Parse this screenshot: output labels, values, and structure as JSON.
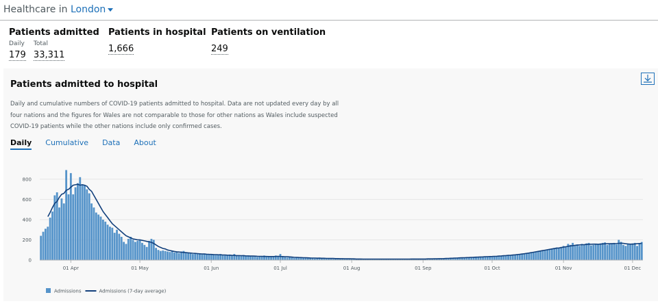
{
  "header": {
    "title": "Healthcare in",
    "location": "London"
  },
  "summary": [
    {
      "title": "Patients admitted",
      "items": [
        {
          "label": "Daily",
          "value": "179"
        },
        {
          "label": "Total",
          "value": "33,311"
        }
      ]
    },
    {
      "title": "Patients in hospital",
      "items": [
        {
          "value": "1,666"
        }
      ]
    },
    {
      "title": "Patients on ventilation",
      "items": [
        {
          "value": "249"
        }
      ]
    }
  ],
  "card": {
    "title": "Patients admitted to hospital",
    "description": "Daily and cumulative numbers of COVID-19 patients admitted to hospital. Data are not updated every day by all four nations and the figures for Wales are not comparable to those for other nations as Wales include suspected COVID-19 patients while the other nations include only confirmed cases.",
    "tabs": [
      "Daily",
      "Cumulative",
      "Data",
      "About"
    ]
  },
  "chart_data": {
    "type": "bar",
    "categories": [
      null,
      null,
      null,
      null,
      null,
      null,
      null,
      null,
      null,
      null,
      null,
      null,
      null,
      "01 Apr",
      null,
      null,
      null,
      null,
      null,
      null,
      null,
      null,
      null,
      null,
      null,
      null,
      null,
      null,
      null,
      null,
      null,
      null,
      null,
      null,
      null,
      null,
      null,
      null,
      null,
      null,
      null,
      null,
      null,
      "01 May",
      null,
      null,
      null,
      null,
      null,
      null,
      null,
      null,
      null,
      null,
      null,
      null,
      null,
      null,
      null,
      null,
      null,
      null,
      null,
      null,
      null,
      null,
      null,
      null,
      null,
      null,
      null,
      null,
      null,
      null,
      "01 Jun",
      null,
      null,
      null,
      null,
      null,
      null,
      null,
      null,
      null,
      null,
      null,
      null,
      null,
      null,
      null,
      null,
      null,
      null,
      null,
      null,
      null,
      null,
      null,
      null,
      null,
      null,
      null,
      null,
      null,
      "01 Jul",
      null,
      null,
      null,
      null,
      null,
      null,
      null,
      null,
      null,
      null,
      null,
      null,
      null,
      null,
      null,
      null,
      null,
      null,
      null,
      null,
      null,
      null,
      null,
      null,
      null,
      null,
      null,
      null,
      null,
      null,
      "01 Aug",
      null,
      null,
      null,
      null,
      null,
      null,
      null,
      null,
      null,
      null,
      null,
      null,
      null,
      null,
      null,
      null,
      null,
      null,
      null,
      null,
      null,
      null,
      null,
      null,
      null,
      null,
      null,
      null,
      null,
      null,
      "01 Sep",
      null,
      null,
      null,
      null,
      null,
      null,
      null,
      null,
      null,
      null,
      null,
      null,
      null,
      null,
      null,
      null,
      null,
      null,
      null,
      null,
      null,
      null,
      null,
      null,
      null,
      null,
      null,
      null,
      null,
      "01 Oct",
      null,
      null,
      null,
      null,
      null,
      null,
      null,
      null,
      null,
      null,
      null,
      null,
      null,
      null,
      null,
      null,
      null,
      null,
      null,
      null,
      null,
      null,
      null,
      null,
      null,
      null,
      null,
      null,
      null,
      null,
      "01 Nov",
      null,
      null,
      null,
      null,
      null,
      null,
      null,
      null,
      null,
      null,
      null,
      null,
      null,
      null,
      null,
      null,
      null,
      null,
      null,
      null,
      null,
      null,
      null,
      null,
      null,
      null,
      null,
      null,
      null,
      "01 Dec",
      null,
      null,
      null,
      null
    ],
    "series": [
      {
        "name": "Admissions",
        "type": "bar",
        "color": "#5694ca",
        "values": [
          240,
          280,
          310,
          330,
          420,
          480,
          640,
          670,
          520,
          610,
          560,
          890,
          650,
          860,
          650,
          720,
          760,
          820,
          750,
          740,
          700,
          660,
          560,
          520,
          470,
          450,
          430,
          400,
          380,
          350,
          330,
          320,
          270,
          300,
          260,
          230,
          180,
          160,
          210,
          230,
          200,
          180,
          190,
          200,
          170,
          150,
          130,
          190,
          210,
          200,
          120,
          100,
          90,
          95,
          90,
          85,
          80,
          90,
          75,
          80,
          70,
          85,
          90,
          75,
          70,
          65,
          60,
          70,
          65,
          60,
          55,
          65,
          60,
          55,
          60,
          55,
          50,
          55,
          60,
          50,
          45,
          50,
          55,
          45,
          60,
          45,
          40,
          45,
          50,
          40,
          45,
          40,
          35,
          40,
          30,
          35,
          40,
          45,
          30,
          35,
          30,
          40,
          45,
          35,
          60,
          35,
          30,
          25,
          30,
          25,
          20,
          25,
          30,
          25,
          20,
          25,
          20,
          25,
          20,
          15,
          20,
          25,
          15,
          20,
          15,
          20,
          15,
          10,
          15,
          20,
          15,
          10,
          15,
          10,
          15,
          10,
          12,
          10,
          8,
          10,
          12,
          10,
          8,
          10,
          8,
          12,
          10,
          8,
          10,
          12,
          10,
          8,
          10,
          12,
          10,
          8,
          10,
          12,
          10,
          8,
          10,
          12,
          14,
          10,
          12,
          10,
          10,
          12,
          14,
          12,
          10,
          14,
          12,
          16,
          14,
          18,
          16,
          20,
          18,
          22,
          20,
          24,
          22,
          26,
          24,
          28,
          30,
          28,
          32,
          30,
          34,
          32,
          36,
          34,
          38,
          36,
          38,
          40,
          36,
          42,
          40,
          44,
          48,
          46,
          50,
          52,
          55,
          58,
          60,
          62,
          65,
          70,
          72,
          75,
          80,
          85,
          88,
          90,
          95,
          100,
          105,
          110,
          115,
          120,
          125,
          115,
          130,
          140,
          135,
          160,
          150,
          170,
          145,
          155,
          140,
          160,
          150,
          165,
          170,
          145,
          150,
          160,
          155,
          165,
          170,
          175,
          150,
          160,
          165,
          170,
          155,
          200,
          180,
          150,
          140,
          160,
          155,
          165,
          170,
          140,
          160,
          179
        ]
      },
      {
        "name": "Admissions (7-day average)",
        "type": "line",
        "color": "#12407c",
        "values": [
          null,
          null,
          null,
          430,
          470,
          520,
          560,
          580,
          620,
          650,
          660,
          690,
          700,
          720,
          740,
          745,
          750,
          740,
          745,
          740,
          730,
          700,
          680,
          640,
          600,
          560,
          520,
          480,
          450,
          420,
          390,
          360,
          340,
          320,
          300,
          280,
          260,
          240,
          230,
          220,
          210,
          205,
          200,
          200,
          195,
          190,
          185,
          180,
          175,
          165,
          150,
          135,
          125,
          115,
          110,
          100,
          95,
          90,
          85,
          82,
          80,
          78,
          76,
          74,
          72,
          70,
          68,
          66,
          64,
          62,
          60,
          60,
          58,
          57,
          56,
          55,
          54,
          53,
          52,
          51,
          50,
          49,
          48,
          47,
          46,
          45,
          45,
          44,
          43,
          42,
          41,
          40,
          40,
          39,
          38,
          37,
          37,
          36,
          36,
          35,
          35,
          35,
          36,
          37,
          36,
          35,
          34,
          33,
          32,
          30,
          28,
          27,
          26,
          25,
          24,
          23,
          22,
          21,
          20,
          20,
          19,
          19,
          18,
          18,
          17,
          17,
          16,
          16,
          15,
          15,
          14,
          14,
          13,
          13,
          13,
          12,
          12,
          11,
          11,
          11,
          10,
          10,
          10,
          10,
          10,
          10,
          10,
          10,
          10,
          10,
          10,
          10,
          10,
          10,
          10,
          10,
          10,
          10,
          10,
          10,
          10,
          11,
          11,
          11,
          11,
          11,
          11,
          11,
          12,
          12,
          12,
          13,
          13,
          14,
          14,
          15,
          16,
          17,
          18,
          19,
          20,
          21,
          22,
          23,
          24,
          25,
          26,
          27,
          28,
          29,
          30,
          31,
          32,
          33,
          34,
          35,
          36,
          37,
          38,
          40,
          41,
          43,
          45,
          47,
          48,
          50,
          52,
          55,
          57,
          60,
          63,
          66,
          70,
          74,
          78,
          82,
          86,
          90,
          94,
          98,
          102,
          106,
          110,
          114,
          118,
          120,
          124,
          128,
          132,
          136,
          140,
          143,
          146,
          148,
          150,
          152,
          153,
          155,
          156,
          157,
          158,
          158,
          157,
          158,
          160,
          161,
          162,
          162,
          163,
          163,
          164,
          166,
          167,
          165,
          162,
          160,
          158,
          158,
          160,
          162,
          164,
          165
        ]
      }
    ],
    "ylim": [
      0,
      900
    ],
    "yticks": [
      0,
      200,
      400,
      600,
      800
    ],
    "grid": true
  }
}
